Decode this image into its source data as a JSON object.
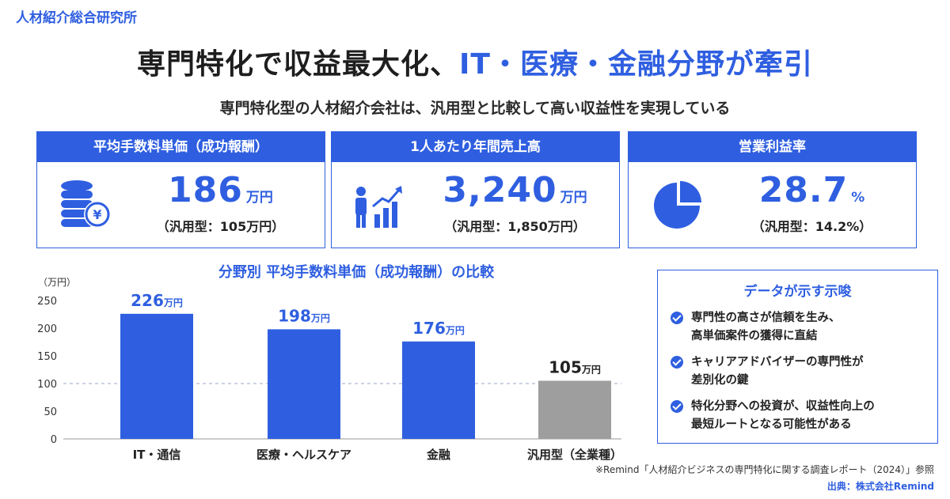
{
  "brand": "人材紹介総合研究所",
  "headline": {
    "main": "専門特化で収益最大化、",
    "accent": "IT・医療・金融分野が牽引"
  },
  "subtitle": "専門特化型の人材紹介会社は、汎用型と比較して高い収益性を実現している",
  "colors": {
    "accent": "#2f5fe0",
    "general_bar": "#9e9e9e"
  },
  "cards": [
    {
      "title": "平均手数料単価（成功報酬）",
      "value": "186",
      "unit": "万円",
      "note": "（汎用型：105万円）",
      "icon": "coins-yen-icon"
    },
    {
      "title": "1人あたり年間売上高",
      "value": "3,240",
      "unit": "万円",
      "note": "（汎用型：1,850万円）",
      "icon": "person-growth-icon"
    },
    {
      "title": "営業利益率",
      "value": "28.7",
      "unit": "%",
      "note": "（汎用型：14.2%）",
      "icon": "pie-chart-icon"
    }
  ],
  "chart_data": {
    "type": "bar",
    "title": "分野別 平均手数料単価（成功報酬）の比較",
    "ylabel": "（万円）",
    "ylim": [
      0,
      250
    ],
    "yticks": [
      0,
      50,
      100,
      150,
      200,
      250
    ],
    "reference_line": 100,
    "grid": false,
    "categories": [
      "IT・通信",
      "医療・ヘルスケア",
      "金融",
      "汎用型（全業種）"
    ],
    "values": [
      226,
      198,
      176,
      105
    ],
    "value_unit": "万円"
  },
  "insight": {
    "title": "データが示す示唆",
    "items": [
      [
        "専門性の高さが信頼を生み、",
        "高単価案件の獲得に直結"
      ],
      [
        "キャリアアドバイザーの専門性が",
        "差別化の鍵"
      ],
      [
        "特化分野への投資が、収益性向上の",
        "最短ルートとなる可能性がある"
      ]
    ]
  },
  "source": {
    "note": "※Remind「人材紹介ビジネスの専門特化に関する調査レポート（2024）」参照",
    "credit": "出典：株式会社Remind"
  }
}
